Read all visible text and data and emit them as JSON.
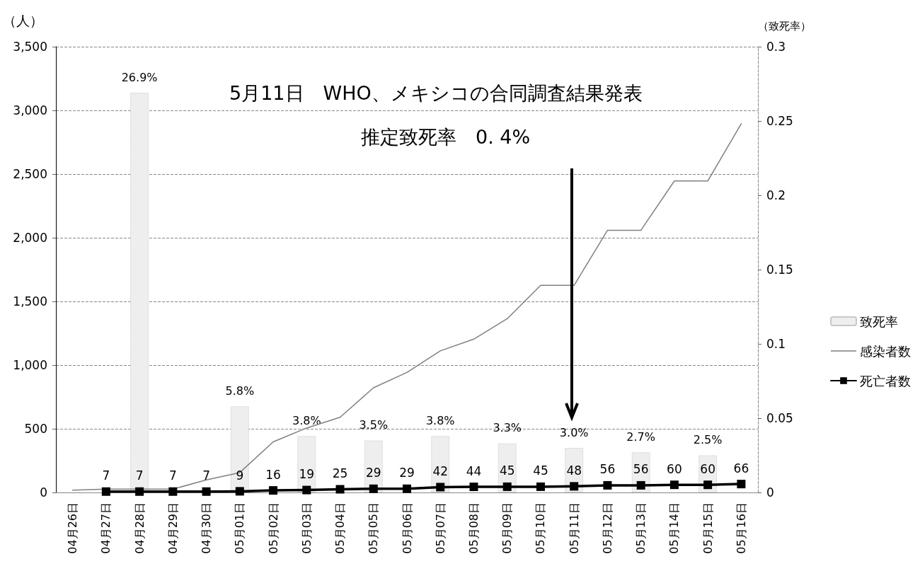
{
  "chart_data": {
    "type": "line",
    "ylabel": "（人）",
    "y2label": "（致死率）",
    "categories": [
      "04月26日",
      "04月27日",
      "04月28日",
      "04月29日",
      "04月30日",
      "05月01日",
      "05月02日",
      "05月03日",
      "05月04日",
      "05月05日",
      "05月06日",
      "05月07日",
      "05月08日",
      "05月09日",
      "05月10日",
      "05月11日",
      "05月12日",
      "05月13日",
      "05月14日",
      "05月15日",
      "05月16日"
    ],
    "series": [
      {
        "name": "致死率",
        "type": "bar",
        "axis": "y2",
        "color": "#eeeeee",
        "values": [
          null,
          null,
          0.269,
          null,
          null,
          0.058,
          null,
          0.038,
          null,
          0.035,
          null,
          0.038,
          null,
          0.033,
          null,
          0.03,
          null,
          0.027,
          null,
          0.025,
          null
        ],
        "value_labels": [
          null,
          null,
          "26.9%",
          null,
          null,
          "5.8%",
          null,
          "3.8%",
          null,
          "3.5%",
          null,
          "3.8%",
          null,
          "3.3%",
          null,
          "3.0%",
          null,
          "2.7%",
          null,
          "2.5%",
          null
        ]
      },
      {
        "name": "感染者数",
        "color": "#808080",
        "values": [
          18,
          26,
          26,
          26,
          99,
          156,
          397,
          506,
          590,
          822,
          942,
          1112,
          1204,
          1364,
          1626,
          1626,
          2059,
          2059,
          2446,
          2446,
          2895
        ]
      },
      {
        "name": "死亡者数",
        "color": "#000000",
        "marker": "square",
        "data_labels": true,
        "values": [
          null,
          7,
          7,
          7,
          7,
          9,
          16,
          19,
          25,
          29,
          29,
          42,
          44,
          45,
          45,
          48,
          56,
          56,
          60,
          60,
          66
        ]
      }
    ],
    "ylim": [
      0,
      3500
    ],
    "yticks": [
      0,
      500,
      {
        "value": 1000,
        "label": "1,000"
      },
      {
        "value": 1500,
        "label": "1,500"
      },
      {
        "value": 2000,
        "label": "2,000"
      },
      {
        "value": 2500,
        "label": "2,500"
      },
      {
        "value": 3000,
        "label": "3,000"
      },
      {
        "value": 3500,
        "label": "3,500"
      }
    ],
    "y2lim": [
      0,
      0.3
    ],
    "y2ticks": [
      0,
      0.05,
      0.1,
      0.15,
      0.2,
      0.25,
      0.3
    ],
    "grid": "y",
    "legend": "right",
    "annotations": [
      "5月11日　WHO、メキシコの合同調査結果発表",
      "推定致死率　0. 4%"
    ]
  }
}
